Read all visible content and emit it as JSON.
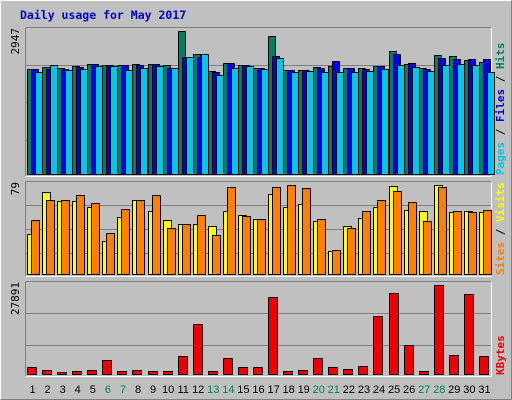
{
  "chart_data": {
    "type": "bar",
    "title": "Daily usage for May 2017",
    "categories": [
      "1",
      "2",
      "3",
      "4",
      "5",
      "6",
      "7",
      "8",
      "9",
      "10",
      "11",
      "12",
      "13",
      "14",
      "15",
      "16",
      "17",
      "18",
      "19",
      "20",
      "21",
      "22",
      "23",
      "24",
      "25",
      "26",
      "27",
      "28",
      "29",
      "30",
      "31"
    ],
    "weekend_days": [
      "6",
      "7",
      "13",
      "14",
      "20",
      "21",
      "27",
      "28"
    ],
    "panels": [
      {
        "name": "hits-files-pages",
        "ymax_label": "2947",
        "ymax": 2947,
        "legend": [
          "Pages",
          "/",
          "Files",
          "/",
          "Hits"
        ],
        "legend_colors": [
          "#00c8e8",
          "#000000",
          "#0000f0",
          "#000000",
          "#008060"
        ],
        "series": [
          {
            "name": "Hits",
            "color": "#008060",
            "values": [
              2170,
              2220,
              2190,
              2230,
              2280,
              2260,
              2250,
              2280,
              2270,
              2260,
              2947,
              2480,
              2120,
              2290,
              2250,
              2200,
              2850,
              2140,
              2140,
              2210,
              2230,
              2200,
              2180,
              2230,
              2540,
              2280,
              2180,
              2450,
              2440,
              2360,
              2310
            ]
          },
          {
            "name": "Files",
            "color": "#0000f0",
            "values": [
              2170,
              2170,
              2170,
              2210,
              2280,
              2250,
              2250,
              2250,
              2270,
              2180,
              2420,
              2420,
              2100,
              2290,
              2250,
              2180,
              2440,
              2140,
              2140,
              2200,
              2330,
              2200,
              2170,
              2230,
              2480,
              2300,
              2160,
              2400,
              2370,
              2380,
              2380
            ]
          },
          {
            "name": "Pages",
            "color": "#00c8e8",
            "values": [
              2100,
              2250,
              2140,
              2170,
              2230,
              2230,
              2140,
              2200,
              2240,
              2180,
              2410,
              2470,
              2040,
              2180,
              2230,
              2160,
              2400,
              2110,
              2120,
              2100,
              2100,
              2110,
              2120,
              2160,
              2260,
              2210,
              2130,
              2250,
              2270,
              2250,
              2100
            ]
          }
        ]
      },
      {
        "name": "visits-sites",
        "ymax_label": "79",
        "ymax": 79,
        "legend": [
          "Sites",
          "/",
          "Visits"
        ],
        "legend_colors": [
          "#ff8000",
          "#000000",
          "#ffff00"
        ],
        "series": [
          {
            "name": "Visits",
            "color": "#ffff00",
            "values": [
              36,
              73,
              65,
              65,
              60,
              30,
              51,
              66,
              56,
              48,
              45,
              45,
              43,
              56,
              53,
              49,
              71,
              60,
              62,
              47,
              21,
              43,
              50,
              60,
              78,
              57,
              56,
              79,
              55,
              56,
              55
            ]
          },
          {
            "name": "Sites",
            "color": "#ff8000",
            "values": [
              48,
              66,
              66,
              70,
              63,
              37,
              58,
              66,
              70,
              41,
              45,
              53,
              35,
              77,
              52,
              49,
              77,
              79,
              76,
              49,
              22,
              41,
              56,
              66,
              74,
              64,
              47,
              77,
              56,
              55,
              57
            ]
          }
        ]
      },
      {
        "name": "kbytes",
        "ymax_label": "27891",
        "ymax": 27891,
        "legend": [
          "KBytes"
        ],
        "legend_colors": [
          "#f00000"
        ],
        "series": [
          {
            "name": "KBytes",
            "color": "#f00000",
            "values": [
              2400,
              1600,
              1000,
              1300,
              1500,
              4800,
              1300,
              1400,
              1300,
              1300,
              5900,
              15800,
              1300,
              5400,
              2600,
              2400,
              24100,
              1300,
              1700,
              5400,
              2400,
              2000,
              2800,
              18200,
              25500,
              9200,
              1300,
              27891,
              6200,
              25000,
              6000
            ]
          }
        ]
      }
    ]
  }
}
